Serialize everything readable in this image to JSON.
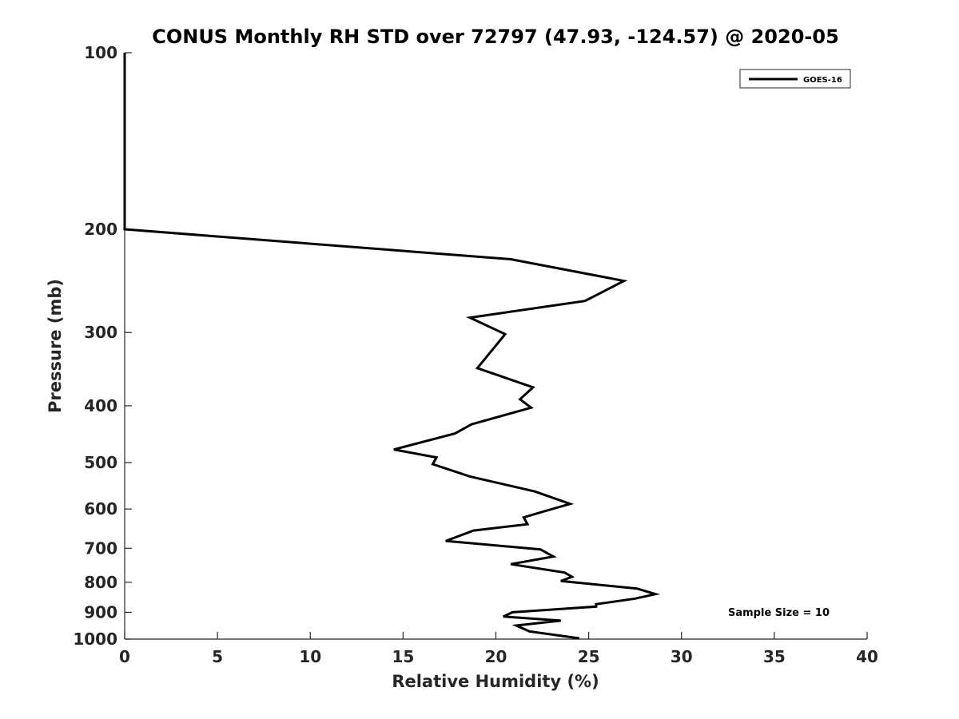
{
  "chart_data": {
    "type": "line",
    "title": "CONUS Monthly RH STD over 72797 (47.93, -124.57) @ 2020-05",
    "xlabel": "Relative Humidity (%)",
    "ylabel": "Pressure (mb)",
    "xlim": [
      0,
      40
    ],
    "ylim": [
      100,
      1000
    ],
    "y_scale": "log",
    "y_reversed": true,
    "x_ticks": [
      "0",
      "5",
      "10",
      "15",
      "20",
      "25",
      "30",
      "35",
      "40"
    ],
    "y_ticks": [
      "100",
      "200",
      "300",
      "400",
      "500",
      "600",
      "700",
      "800",
      "900",
      "1000"
    ],
    "grid": false,
    "legend": {
      "position": "top-right",
      "entries": [
        "GOES-16"
      ]
    },
    "annotation": "Sample Size = 10",
    "series": [
      {
        "name": "GOES-16",
        "color": "#000000",
        "points": [
          [
            0,
            100
          ],
          [
            0,
            150
          ],
          [
            0,
            200
          ],
          [
            20.8,
            225
          ],
          [
            26.9,
            245
          ],
          [
            24.8,
            265
          ],
          [
            18.6,
            283
          ],
          [
            20.5,
            302
          ],
          [
            19.0,
            345
          ],
          [
            22.0,
            372
          ],
          [
            21.3,
            390
          ],
          [
            21.9,
            403
          ],
          [
            18.7,
            430
          ],
          [
            17.8,
            446
          ],
          [
            14.5,
            475
          ],
          [
            16.8,
            490
          ],
          [
            16.6,
            503
          ],
          [
            18.6,
            528
          ],
          [
            22.1,
            560
          ],
          [
            24.0,
            588
          ],
          [
            22.4,
            608
          ],
          [
            21.5,
            620
          ],
          [
            21.7,
            637
          ],
          [
            18.8,
            653
          ],
          [
            17.3,
            680
          ],
          [
            22.4,
            703
          ],
          [
            23.1,
            723
          ],
          [
            20.8,
            745
          ],
          [
            23.7,
            770
          ],
          [
            24.1,
            783
          ],
          [
            23.5,
            796
          ],
          [
            27.6,
            820
          ],
          [
            28.6,
            838
          ],
          [
            27.5,
            853
          ],
          [
            25.4,
            872
          ],
          [
            25.4,
            880
          ],
          [
            20.9,
            900
          ],
          [
            20.4,
            915
          ],
          [
            23.5,
            930
          ],
          [
            21.1,
            948
          ],
          [
            21.8,
            970
          ],
          [
            24.5,
            997
          ]
        ]
      }
    ]
  }
}
